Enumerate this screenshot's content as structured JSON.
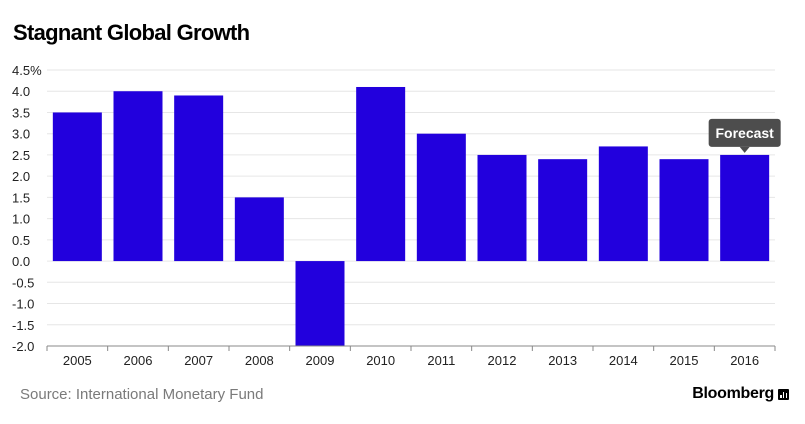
{
  "header": {
    "title": "Stagnant Global Growth"
  },
  "footer": {
    "source": "Source: International Monetary Fund",
    "brand": "Bloomberg"
  },
  "colors": {
    "bar": "#2200dd",
    "grid": "#e6e6e6",
    "axis": "#888888",
    "annotation_bg": "#4d4d4d"
  },
  "chart_data": {
    "type": "bar",
    "title": "Stagnant Global Growth",
    "xlabel": "",
    "ylabel": "",
    "ylim": [
      -2.0,
      4.5
    ],
    "y_ticks": [
      4.5,
      4.0,
      3.5,
      3.0,
      2.5,
      2.0,
      1.5,
      1.0,
      0.5,
      0.0,
      -0.5,
      -1.0,
      -1.5,
      -2.0
    ],
    "y_tick_labels": [
      "4.5%",
      "4.0",
      "3.5",
      "3.0",
      "2.5",
      "2.0",
      "1.5",
      "1.0",
      "0.5",
      "0.0",
      "-0.5",
      "-1.0",
      "-1.5",
      "-2.0"
    ],
    "categories": [
      "2005",
      "2006",
      "2007",
      "2008",
      "2009",
      "2010",
      "2011",
      "2012",
      "2013",
      "2014",
      "2015",
      "2016"
    ],
    "values": [
      3.5,
      4.0,
      3.9,
      1.5,
      -2.0,
      4.1,
      3.0,
      2.5,
      2.4,
      2.7,
      2.4,
      2.5
    ],
    "annotations": [
      {
        "category": "2016",
        "text": "Forecast"
      }
    ],
    "grid": true
  }
}
